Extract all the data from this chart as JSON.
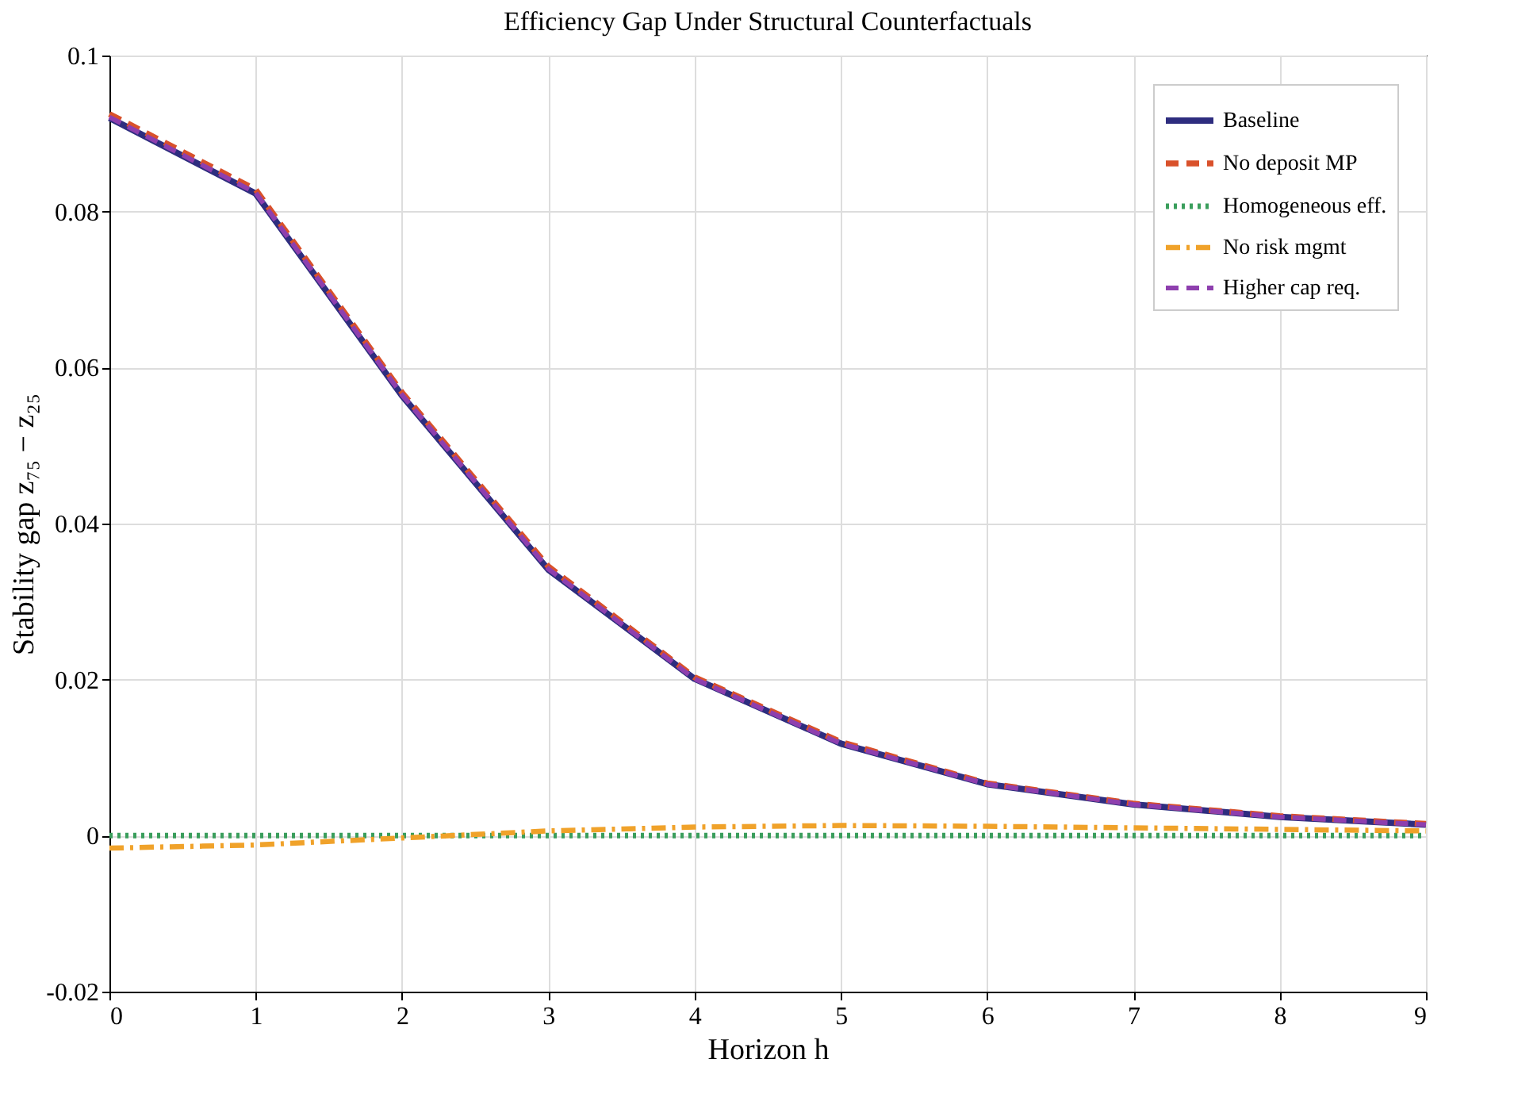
{
  "chart_data": {
    "type": "line",
    "title": "Efficiency Gap Under Structural Counterfactuals",
    "xlabel": "Horizon h",
    "ylabel": "Stability gap z₇₅ − z₂₅",
    "x": [
      0,
      1,
      2,
      3,
      4,
      5,
      6,
      7,
      8,
      9
    ],
    "series": [
      {
        "name": "Baseline",
        "color": "#2e2d7f",
        "line_style": "solid",
        "values": [
          0.092,
          0.0823,
          0.0564,
          0.0341,
          0.0201,
          0.0118,
          0.0066,
          0.004,
          0.0024,
          0.0014
        ]
      },
      {
        "name": "No deposit MP",
        "color": "#d9512b",
        "line_style": "dashed",
        "values": [
          0.0925,
          0.0828,
          0.0568,
          0.0345,
          0.0203,
          0.012,
          0.0067,
          0.0041,
          0.0025,
          0.0015
        ]
      },
      {
        "name": "Homogeneous eff.",
        "color": "#3a9e5c",
        "line_style": "dotted",
        "values": [
          0,
          0,
          0,
          0,
          0,
          0,
          0,
          0,
          0,
          0
        ]
      },
      {
        "name": "No risk mgmt",
        "color": "#f0a22a",
        "line_style": "dashdot",
        "values": [
          -0.0016,
          -0.0012,
          -0.0003,
          0.0006,
          0.0011,
          0.0013,
          0.0012,
          0.001,
          0.0008,
          0.0006
        ]
      },
      {
        "name": "Higher cap req.",
        "color": "#8e3fae",
        "line_style": "dashed",
        "values": [
          0.0921,
          0.0824,
          0.0565,
          0.0342,
          0.0201,
          0.0118,
          0.0066,
          0.004,
          0.0024,
          0.0014
        ]
      }
    ],
    "xlim": [
      0,
      9
    ],
    "xticks": [
      0,
      1,
      2,
      3,
      4,
      5,
      6,
      7,
      8,
      9
    ],
    "ylim": [
      -0.02,
      0.1
    ],
    "yticks": [
      -0.02,
      0,
      0.02,
      0.04,
      0.06,
      0.08,
      0.1
    ],
    "grid": true,
    "legend": "top right",
    "marker": "none"
  }
}
